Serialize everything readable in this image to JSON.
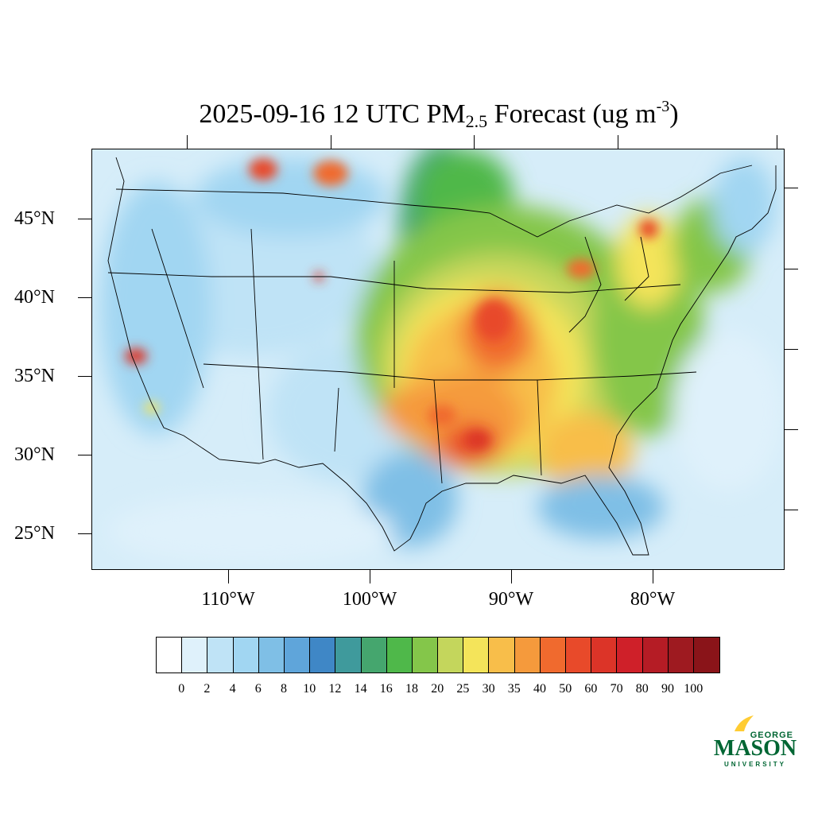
{
  "title": {
    "prefix": "2025-09-16 12 UTC PM",
    "subscript": "2.5",
    "middle": " Forecast (ug m",
    "superscript": "-3",
    "suffix": ")"
  },
  "map": {
    "lat_labels": [
      "45°N",
      "40°N",
      "35°N",
      "30°N",
      "25°N"
    ],
    "lon_labels": [
      "110°W",
      "100°W",
      "90°W",
      "80°W"
    ]
  },
  "colorbar": {
    "colors": [
      "#ffffff",
      "#dff1fb",
      "#bfe3f6",
      "#a1d6f2",
      "#7fbfe6",
      "#5fa5da",
      "#3f87c6",
      "#3f9a9c",
      "#45a66e",
      "#4fb84a",
      "#84c64a",
      "#c4d65c",
      "#f4e45a",
      "#f8be4a",
      "#f59a3c",
      "#f06a2e",
      "#e84a2a",
      "#dc3428",
      "#cf2029",
      "#b51c25",
      "#9e1a20",
      "#8a1419"
    ],
    "labels": [
      "0",
      "2",
      "4",
      "6",
      "8",
      "10",
      "12",
      "14",
      "16",
      "18",
      "20",
      "25",
      "30",
      "35",
      "40",
      "50",
      "60",
      "70",
      "80",
      "90",
      "100"
    ]
  },
  "logo": {
    "line1": "GEORGE",
    "line2": "MASON",
    "line3": "UNIVERSITY",
    "brand_green": "#006633",
    "brand_gold": "#ffcc33"
  }
}
